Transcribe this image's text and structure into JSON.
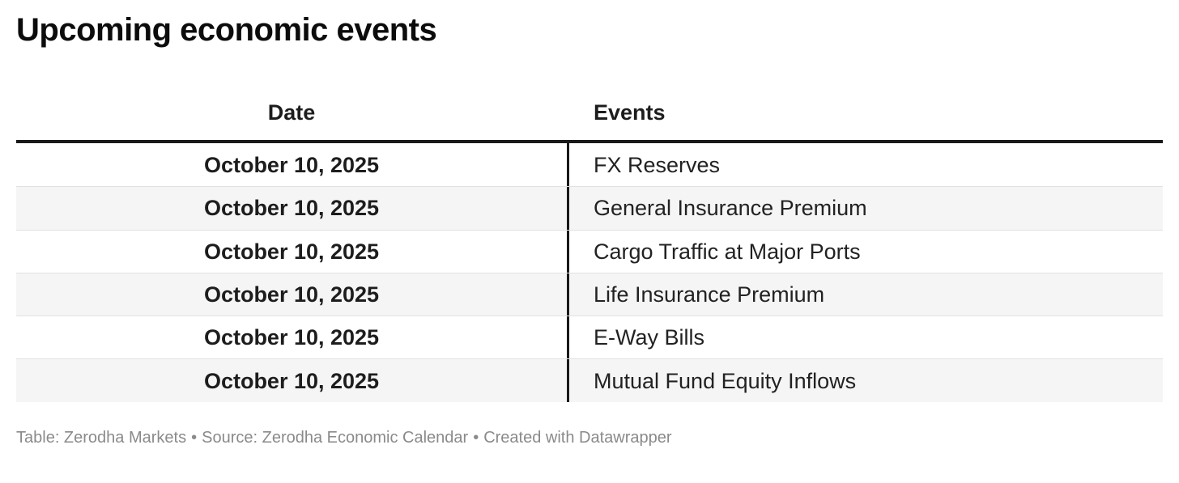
{
  "title": "Upcoming economic events",
  "table": {
    "columns": [
      {
        "label": "Date",
        "align": "center"
      },
      {
        "label": "Events",
        "align": "left"
      }
    ],
    "rows": [
      {
        "date": "October 10, 2025",
        "event": "FX Reserves"
      },
      {
        "date": "October 10, 2025",
        "event": "General Insurance Premium"
      },
      {
        "date": "October 10, 2025",
        "event": "Cargo Traffic at Major Ports"
      },
      {
        "date": "October 10, 2025",
        "event": "Life Insurance Premium"
      },
      {
        "date": "October 10, 2025",
        "event": "E-Way Bills"
      },
      {
        "date": "October 10, 2025",
        "event": "Mutual Fund Equity Inflows"
      }
    ]
  },
  "footer": {
    "table_credit": "Table: Zerodha Markets",
    "source_credit": "Source: Zerodha Economic Calendar",
    "created_with": "Created with Datawrapper",
    "separator": "•"
  },
  "colors": {
    "title_text": "#0c0c0c",
    "body_text": "#1d1d1d",
    "stripe_row": "#f5f5f5",
    "header_rule": "#191919",
    "column_divider": "#191919",
    "row_separator": "#e1e1e1",
    "footer_text": "#8a8a8a",
    "background": "#ffffff"
  },
  "chart_data": {
    "type": "table",
    "title": "Upcoming economic events",
    "columns": [
      "Date",
      "Events"
    ],
    "rows": [
      [
        "October 10, 2025",
        "FX Reserves"
      ],
      [
        "October 10, 2025",
        "General Insurance Premium"
      ],
      [
        "October 10, 2025",
        "Cargo Traffic at Major Ports"
      ],
      [
        "October 10, 2025",
        "Life Insurance Premium"
      ],
      [
        "October 10, 2025",
        "E-Way Bills"
      ],
      [
        "October 10, 2025",
        "Mutual Fund Equity Inflows"
      ]
    ],
    "notes": "Table: Zerodha Markets • Source: Zerodha Economic Calendar • Created with Datawrapper",
    "layout_hints": {
      "zebra_striping": true,
      "date_column_alignment": "center",
      "events_column_alignment": "left",
      "header_rule": "double-black-line",
      "column_divider": "solid-black-vertical"
    }
  }
}
